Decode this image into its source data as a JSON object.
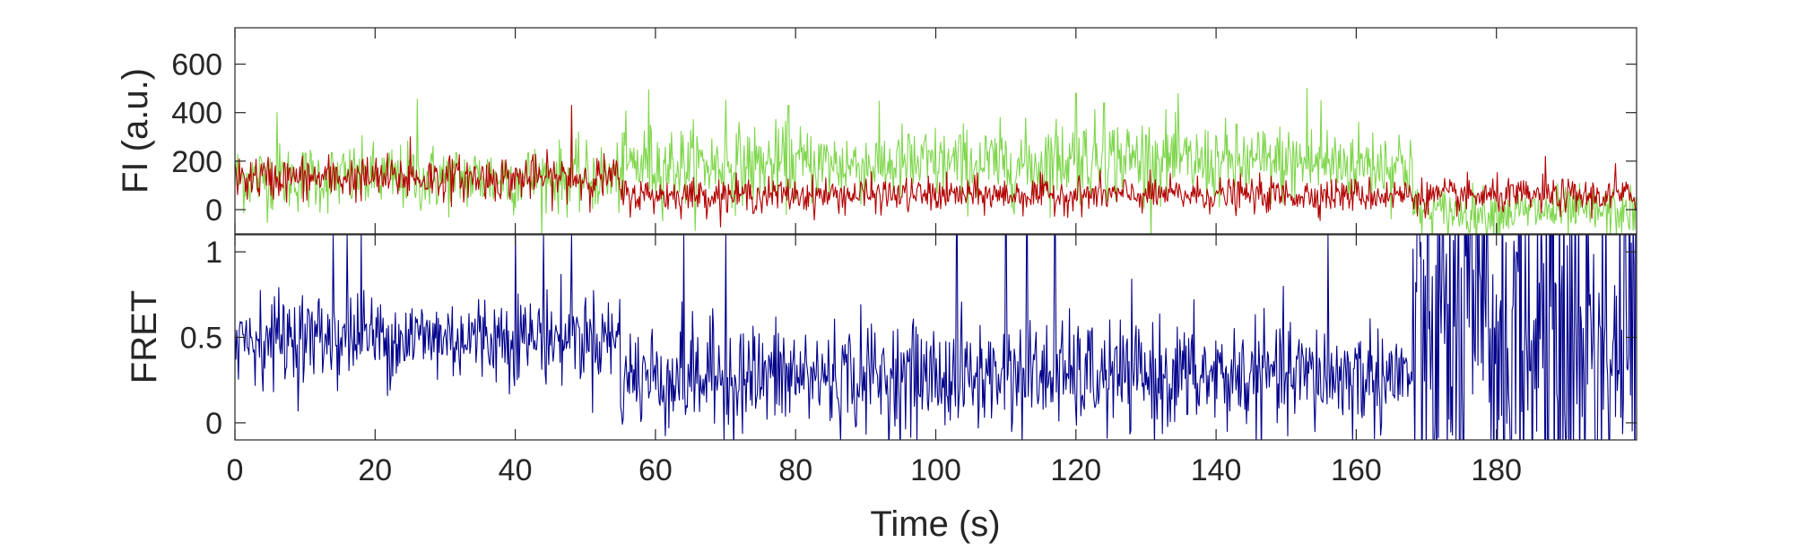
{
  "chart_data": [
    {
      "type": "line",
      "panel": "top",
      "title": "",
      "xlabel": "",
      "ylabel": "FI (a.u.)",
      "xlim": [
        0,
        200
      ],
      "ylim": [
        -100,
        750
      ],
      "xticks": [
        0,
        20,
        40,
        60,
        80,
        100,
        120,
        140,
        160,
        180
      ],
      "yticks": [
        0,
        200,
        400,
        600
      ],
      "ytick_labels": [
        "0",
        "200",
        "400",
        "600"
      ],
      "grid": false,
      "legend": "none",
      "series": [
        {
          "color": "#7fd64c",
          "segments": [
            {
              "x_start": 0,
              "x_end": 55,
              "mean": 130,
              "noise": 70
            },
            {
              "x_start": 55,
              "x_end": 115,
              "mean": 185,
              "noise": 80
            },
            {
              "x_start": 115,
              "x_end": 135,
              "mean": 210,
              "noise": 85
            },
            {
              "x_start": 135,
              "x_end": 168,
              "mean": 190,
              "noise": 80
            },
            {
              "x_start": 168,
              "x_end": 200,
              "mean": -10,
              "noise": 50
            }
          ],
          "peaks": [
            [
              6,
              400
            ],
            [
              26,
              455
            ],
            [
              48,
              420
            ],
            [
              59,
              495
            ],
            [
              70,
              450
            ],
            [
              79,
              430
            ],
            [
              120,
              480
            ],
            [
              124,
              440
            ],
            [
              153,
              500
            ],
            [
              155,
              450
            ]
          ]
        },
        {
          "color": "#b30000",
          "segments": [
            {
              "x_start": 0,
              "x_end": 55,
              "mean": 130,
              "noise": 45
            },
            {
              "x_start": 55,
              "x_end": 168,
              "mean": 60,
              "noise": 35
            },
            {
              "x_start": 168,
              "x_end": 200,
              "mean": 55,
              "noise": 35
            }
          ],
          "peaks": [
            [
              48,
              430
            ],
            [
              25,
              300
            ],
            [
              187,
              220
            ],
            [
              197,
              190
            ]
          ]
        }
      ]
    },
    {
      "type": "line",
      "panel": "bottom",
      "title": "",
      "xlabel": "Time (s)",
      "ylabel": "FRET",
      "xlim": [
        0,
        200
      ],
      "ylim": [
        -0.1,
        1.1
      ],
      "xticks": [
        0,
        20,
        40,
        60,
        80,
        100,
        120,
        140,
        160,
        180
      ],
      "xtick_labels": [
        "0",
        "20",
        "40",
        "60",
        "80",
        "100",
        "120",
        "140",
        "160",
        "180"
      ],
      "yticks": [
        0,
        0.5,
        1
      ],
      "ytick_labels": [
        "0",
        "0.5",
        "1"
      ],
      "grid": false,
      "legend": "none",
      "series": [
        {
          "color": "#00008b",
          "segments": [
            {
              "x_start": 0,
              "x_end": 55,
              "mean": 0.5,
              "noise": 0.13
            },
            {
              "x_start": 55,
              "x_end": 168,
              "mean": 0.27,
              "noise": 0.16
            },
            {
              "x_start": 168,
              "x_end": 200,
              "mean": 0.5,
              "noise": 0.6
            }
          ],
          "peaks": [
            [
              14,
              1.1
            ],
            [
              16,
              1.1
            ],
            [
              18,
              1.1
            ],
            [
              40,
              1.1
            ],
            [
              44,
              1.1
            ],
            [
              48,
              1.1
            ],
            [
              64,
              1.1
            ],
            [
              70,
              1.1
            ],
            [
              103,
              1.1
            ],
            [
              110,
              1.1
            ],
            [
              113,
              1.1
            ],
            [
              117,
              1.1
            ],
            [
              156,
              1.1
            ]
          ]
        }
      ]
    }
  ]
}
